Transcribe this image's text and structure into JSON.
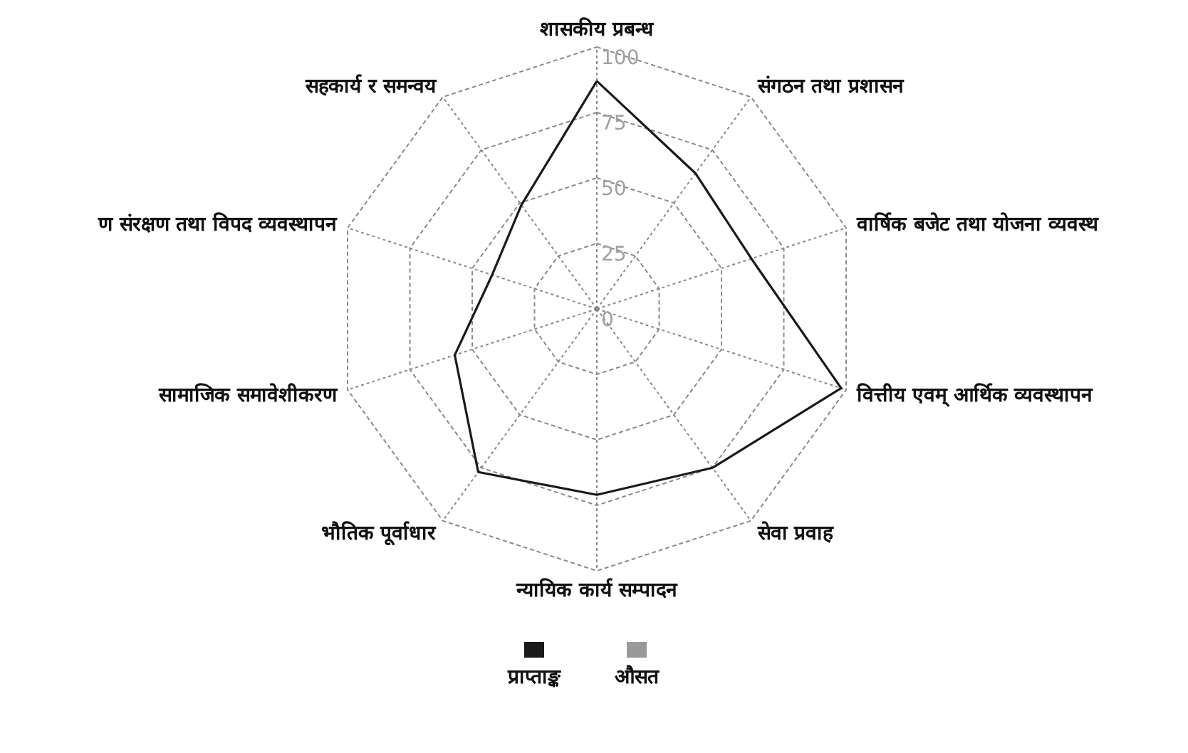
{
  "chart_data": {
    "type": "radar",
    "categories": [
      "शासकीय प्रबन्ध",
      "संगठन तथा प्रशासन",
      "वार्षिक बजेट तथा योजना व्यवस्थ",
      "वित्तीय एवम् आर्थिक व्यवस्थापन",
      "सेवा प्रवाह",
      "न्यायिक कार्य सम्पादन",
      "भौतिक पूर्वाधार",
      "सामाजिक समावेशीकरण",
      "ण संरक्षण तथा विपद व्यवस्थापन",
      "सहकार्य र समन्वय"
    ],
    "series": [
      {
        "name": "प्राप्ताङ्क",
        "color": "#1a1a1a",
        "values": [
          87,
          64,
          62,
          98,
          75,
          71,
          77,
          57,
          42,
          49
        ]
      },
      {
        "name": "औसत",
        "color": "#999999",
        "values": [
          null,
          null,
          null,
          null,
          null,
          null,
          null,
          null,
          null,
          null
        ]
      }
    ],
    "ylim": [
      0,
      100
    ],
    "yticks": [
      0,
      25,
      50,
      75,
      100
    ],
    "grid": true,
    "legend": "bottom",
    "marker": "none",
    "line_style": "solid"
  }
}
